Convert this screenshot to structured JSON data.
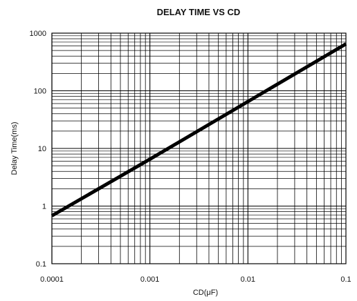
{
  "chart_data": {
    "type": "line",
    "title": "DELAY TIME VS CD",
    "xlabel": "CD(μF)",
    "ylabel": "Delay Time(ms)",
    "x_scale": "log",
    "y_scale": "log",
    "xlim": [
      0.0001,
      0.1
    ],
    "ylim": [
      0.1,
      1000
    ],
    "x_ticks": [
      {
        "value": 0.0001,
        "label": "0.0001"
      },
      {
        "value": 0.001,
        "label": "0.001"
      },
      {
        "value": 0.01,
        "label": "0.01"
      },
      {
        "value": 0.1,
        "label": "0.1"
      }
    ],
    "y_ticks": [
      {
        "value": 0.1,
        "label": "0.1"
      },
      {
        "value": 1,
        "label": "1"
      },
      {
        "value": 10,
        "label": "10"
      },
      {
        "value": 100,
        "label": "100"
      },
      {
        "value": 1000,
        "label": "1000"
      }
    ],
    "grid": true,
    "series": [
      {
        "x": [
          0.0001,
          0.001,
          0.01,
          0.1
        ],
        "y": [
          0.68,
          6.5,
          65,
          650
        ],
        "color": "#000000"
      }
    ]
  }
}
